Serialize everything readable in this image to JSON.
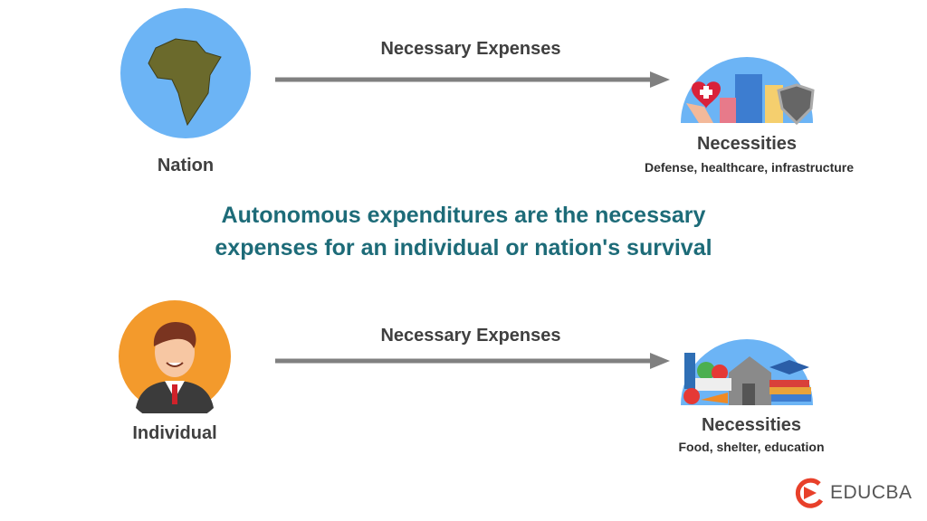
{
  "top": {
    "source_label": "Nation",
    "arrow_label": "Necessary Expenses",
    "target_title": "Necessities",
    "target_subtitle": "Defense, healthcare, infrastructure"
  },
  "headline": {
    "line1": "Autonomous expenditures  are the necessary",
    "line2": "expenses for an individual or nation's survival"
  },
  "bottom": {
    "source_label": "Individual",
    "arrow_label": "Necessary Expenses",
    "target_title": "Necessities",
    "target_subtitle": "Food, shelter, education"
  },
  "logo": {
    "text": "EDUCBA"
  },
  "colors": {
    "circle_blue": "#6cb4f5",
    "circle_orange": "#f39a2c",
    "arrow": "#808080",
    "headline": "#1d6b78",
    "logo_red": "#e8402a"
  }
}
